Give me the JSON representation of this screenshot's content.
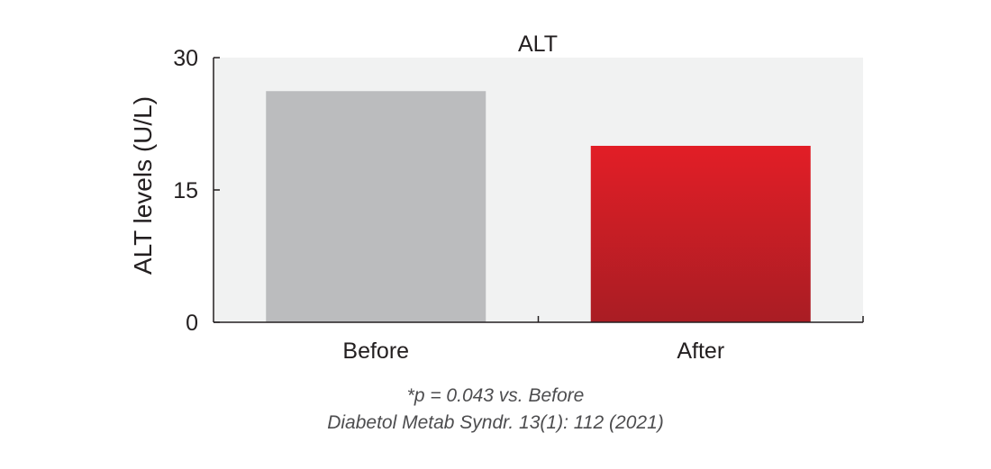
{
  "chart_data": {
    "type": "bar",
    "title": "ALT",
    "ylabel": "ALT levels (U/L)",
    "xlabel": "",
    "categories": [
      "Before",
      "After"
    ],
    "values": [
      26.2,
      20.0
    ],
    "ylim": [
      0,
      30
    ],
    "yticks": [
      "0",
      "15",
      "30"
    ],
    "grid": false,
    "bar_colors": [
      "#bbbcbe",
      "#e21e26"
    ],
    "plot_background": "#f1f2f2"
  },
  "footnote": {
    "significance": "*p = 0.043 vs. Before",
    "citation": "Diabetol Metab Syndr. 13(1): 112 (2021)"
  }
}
